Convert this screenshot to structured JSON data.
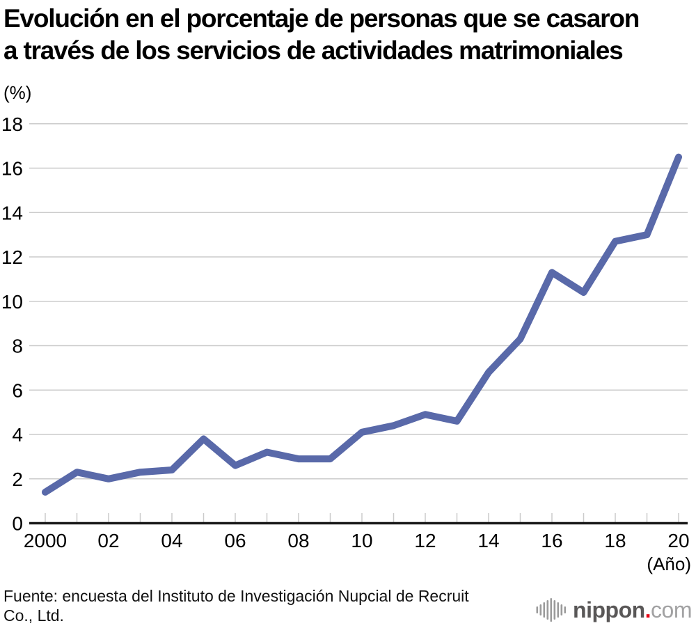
{
  "title": {
    "line1": "Evolución en el porcentaje de personas que se casaron",
    "line2": "a través de los servicios de actividades matrimoniales"
  },
  "source": {
    "line1": "Fuente: encuesta del Instituto de Investigación Nupcial de Recruit",
    "line2": "Co., Ltd."
  },
  "logo": {
    "icon": "soundwave-bars-icon",
    "name": "nippon",
    "dot": ".",
    "tld": "com"
  },
  "chart_data": {
    "type": "line",
    "title": "Evolución en el porcentaje de personas que se casaron a través de los servicios de actividades matrimoniales",
    "unit_label": "(%)",
    "x_axis_label": "(Año)",
    "series_name": "Porcentaje de personas que se casaron a través de servicios de actividades matrimoniales",
    "x": [
      2000,
      2001,
      2002,
      2003,
      2004,
      2005,
      2006,
      2007,
      2008,
      2009,
      2010,
      2011,
      2012,
      2013,
      2014,
      2015,
      2016,
      2017,
      2018,
      2019,
      2020
    ],
    "values": [
      1.4,
      2.3,
      2.0,
      2.3,
      2.4,
      3.8,
      2.6,
      3.2,
      2.9,
      2.9,
      4.1,
      4.4,
      4.9,
      4.6,
      6.8,
      8.3,
      11.3,
      10.4,
      12.7,
      13.0,
      16.5
    ],
    "ylim": [
      0,
      18
    ],
    "ytick_step": 2,
    "xtick_years": [
      2000,
      2002,
      2004,
      2006,
      2008,
      2010,
      2012,
      2014,
      2016,
      2018,
      2020
    ],
    "xtick_labels": [
      "2000",
      "02",
      "04",
      "06",
      "08",
      "10",
      "12",
      "14",
      "16",
      "18",
      "20"
    ],
    "grid": "horizontal",
    "legend": "none",
    "line_color": "#5969a9",
    "grid_color": "#cbcbcb",
    "axis_color": "#1a1a1a"
  }
}
